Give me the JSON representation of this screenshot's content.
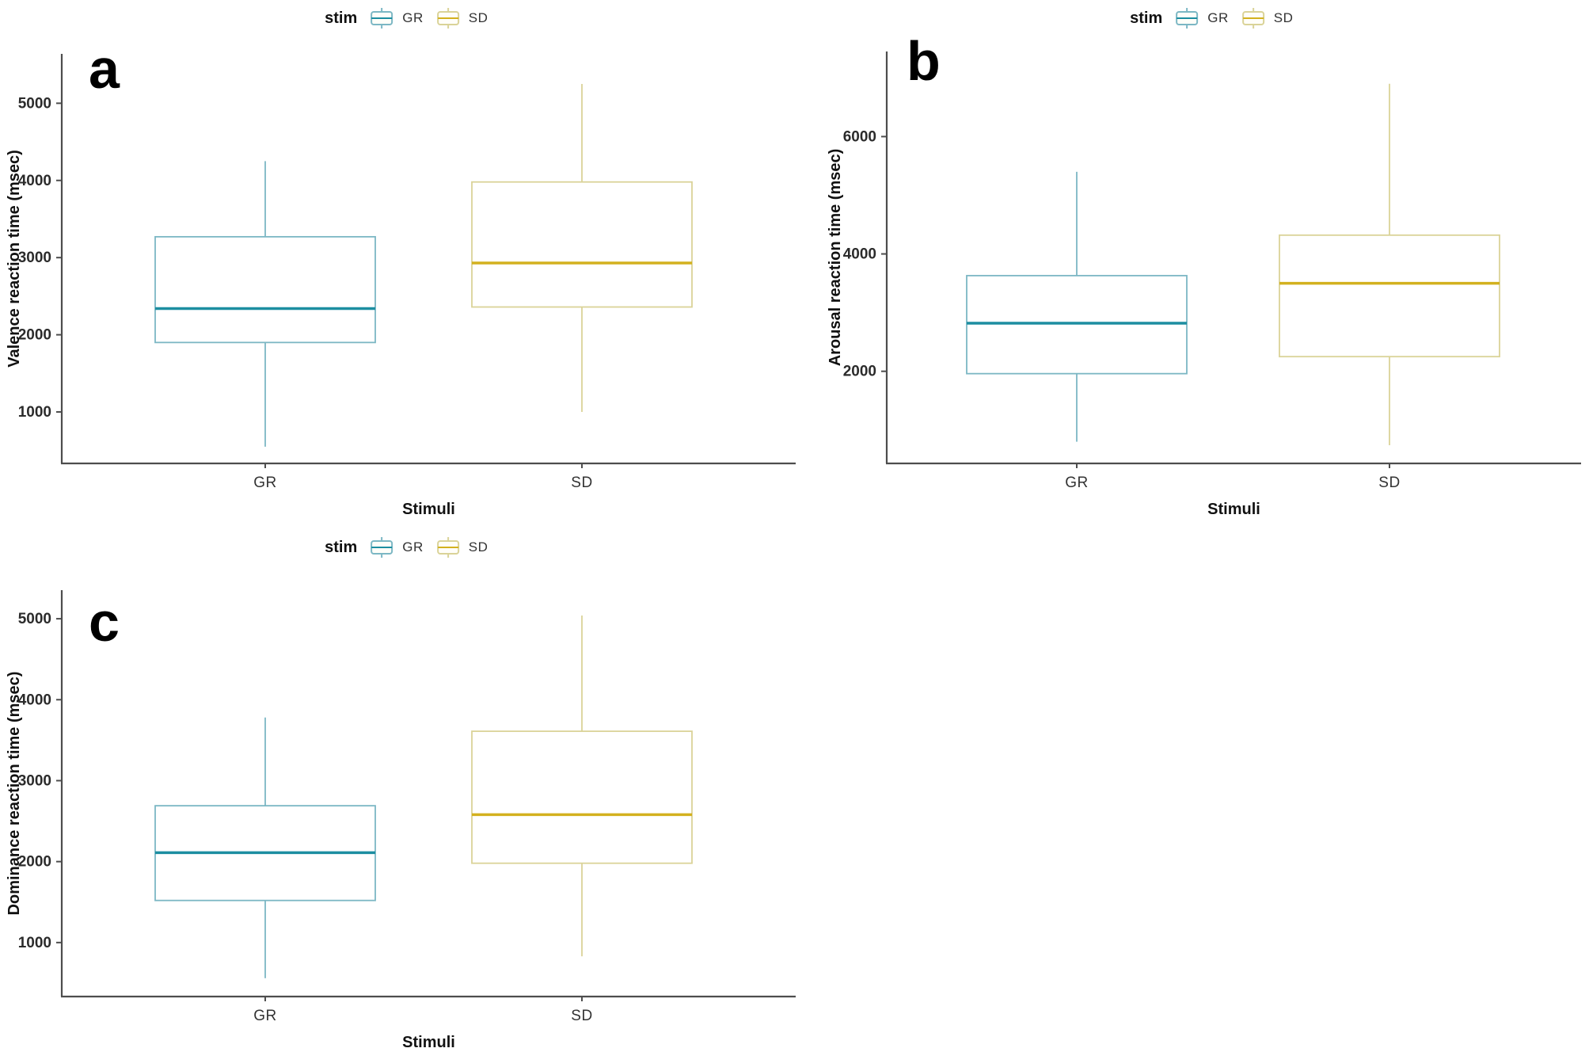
{
  "figure": {
    "background": "#ffffff",
    "description": "Three ggplot-style boxplot panels comparing reaction times for GR vs SD stimuli"
  },
  "colors": {
    "gr_box": "#7cb7c4",
    "gr_median": "#1d8ea1",
    "sd_box": "#dad398",
    "sd_median": "#d3b11f",
    "axis": "#4d4d4d",
    "tick_text": "#2b2b2b",
    "title_text": "#111111"
  },
  "chart_data": [
    {
      "id": "a",
      "letter": "a",
      "type": "boxplot",
      "title": "",
      "xlabel": "Stimuli",
      "ylabel": "Valence reaction time (msec)",
      "categories": [
        "GR",
        "SD"
      ],
      "ylim": [
        333,
        5640
      ],
      "yticks": [
        1000,
        2000,
        3000,
        4000,
        5000
      ],
      "grid": false,
      "legend": {
        "title": "stim",
        "entries": [
          "GR",
          "SD"
        ],
        "position": "top-center"
      },
      "series": [
        {
          "name": "GR",
          "whisker_low": 550,
          "q1": 1900,
          "median": 2340,
          "q3": 3270,
          "whisker_high": 4250
        },
        {
          "name": "SD",
          "whisker_low": 1000,
          "q1": 2360,
          "median": 2930,
          "q3": 3980,
          "whisker_high": 5250
        }
      ]
    },
    {
      "id": "b",
      "letter": "b",
      "type": "boxplot",
      "title": "",
      "xlabel": "Stimuli",
      "ylabel": "Arousal reaction time (msec)",
      "categories": [
        "GR",
        "SD"
      ],
      "ylim": [
        430,
        7450
      ],
      "yticks": [
        2000,
        4000,
        6000
      ],
      "grid": false,
      "legend": {
        "title": "stim",
        "entries": [
          "GR",
          "SD"
        ],
        "position": "top-center"
      },
      "series": [
        {
          "name": "GR",
          "whisker_low": 800,
          "q1": 1960,
          "median": 2820,
          "q3": 3630,
          "whisker_high": 5400
        },
        {
          "name": "SD",
          "whisker_low": 740,
          "q1": 2250,
          "median": 3500,
          "q3": 4320,
          "whisker_high": 6900
        }
      ]
    },
    {
      "id": "c",
      "letter": "c",
      "type": "boxplot",
      "title": "",
      "xlabel": "Stimuli",
      "ylabel": "Dominance reaction time (msec)",
      "categories": [
        "GR",
        "SD"
      ],
      "ylim": [
        333,
        5353
      ],
      "yticks": [
        1000,
        2000,
        3000,
        4000,
        5000
      ],
      "grid": false,
      "legend": {
        "title": "stim",
        "entries": [
          "GR",
          "SD"
        ],
        "position": "top-center"
      },
      "series": [
        {
          "name": "GR",
          "whisker_low": 560,
          "q1": 1520,
          "median": 2110,
          "q3": 2690,
          "whisker_high": 3780
        },
        {
          "name": "SD",
          "whisker_low": 830,
          "q1": 1980,
          "median": 2580,
          "q3": 3610,
          "whisker_high": 5040
        }
      ]
    }
  ]
}
